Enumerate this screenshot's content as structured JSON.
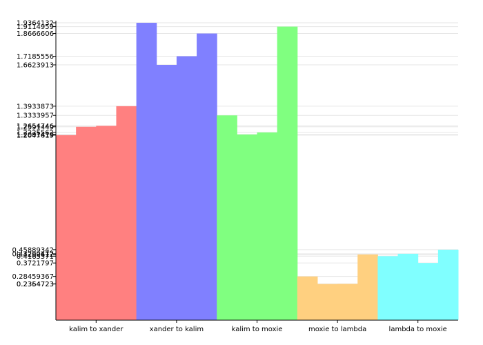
{
  "chart_data": {
    "type": "bar",
    "title": "",
    "xlabel": "",
    "ylabel": "",
    "ylim": [
      0,
      1.95
    ],
    "grid": true,
    "categories": [
      "kalim to xander",
      "xander to kalim",
      "kalim to moxie",
      "moxie to lambda",
      "lambda to moxie"
    ],
    "groups": [
      {
        "name": "kalim to xander",
        "color": "#ff8080",
        "values": [
          1.2047619,
          1.2591449,
          1.2654746,
          1.3933873
        ]
      },
      {
        "name": "xander to kalim",
        "color": "#8080ff",
        "values": [
          1.9364132,
          1.6623913,
          1.7185556,
          1.8666606
        ]
      },
      {
        "name": "kalim to moxie",
        "color": "#80ff80",
        "values": [
          1.3333957,
          1.2091419,
          1.2225562,
          1.9114959
        ]
      },
      {
        "name": "moxie to lambda",
        "color": "#ffd080",
        "values": [
          0.28459367,
          0.2354723,
          0.2364723,
          0.4280612
        ]
      },
      {
        "name": "lambda to moxie",
        "color": "#80ffff",
        "values": [
          0.4165571,
          0.43202477,
          0.3721797,
          0.45889342
        ]
      }
    ],
    "y_tick_labels": [
      "1.9364132",
      "1.9114959",
      "1.8666606",
      "1.7185556",
      "1.6623913",
      "1.3933873",
      "1.3333957",
      "1.2654746",
      "1.2591449",
      "1.2225562",
      "1.2091419",
      "1.2047619",
      "0.45889342",
      "0.43202477",
      "0.4280612",
      "0.4165571",
      "0.3721797",
      "0.28459367",
      "0.2364723",
      "0.2354723"
    ],
    "y_ticks": [
      1.9364132,
      1.9114959,
      1.8666606,
      1.7185556,
      1.6623913,
      1.3933873,
      1.3333957,
      1.2654746,
      1.2591449,
      1.2225562,
      1.2091419,
      1.2047619,
      0.45889342,
      0.43202477,
      0.4280612,
      0.4165571,
      0.3721797,
      0.28459367,
      0.2364723,
      0.2354723
    ]
  }
}
